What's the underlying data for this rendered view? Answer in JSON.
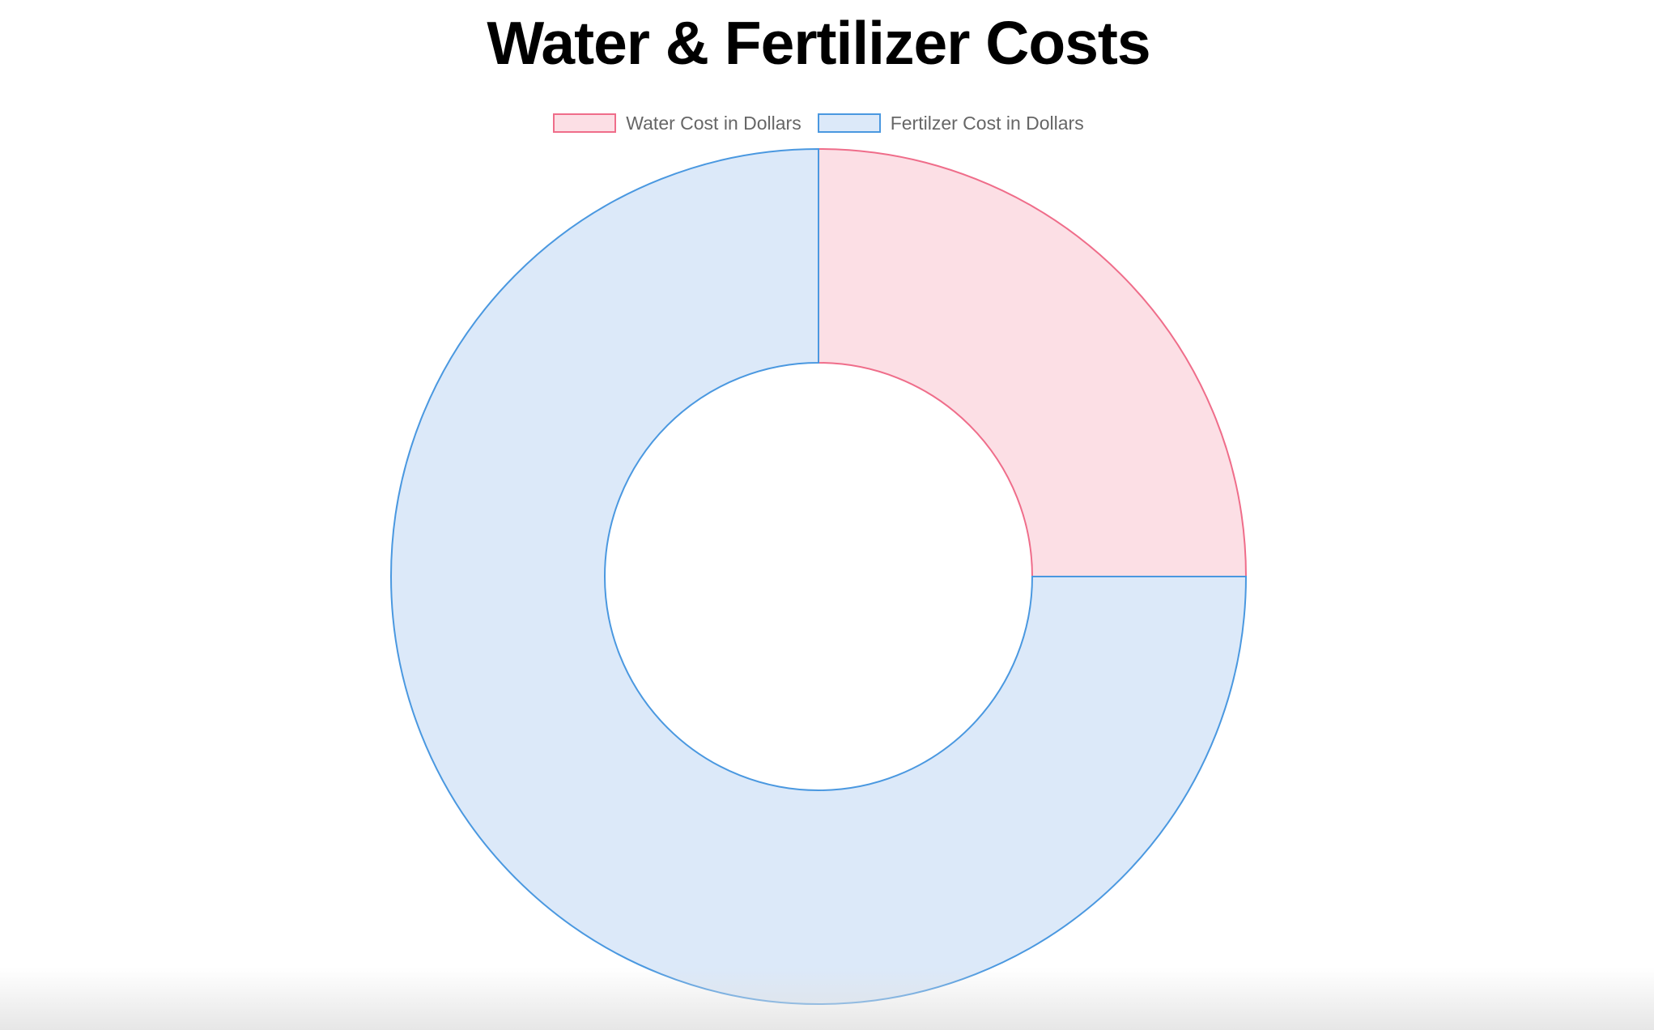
{
  "chart_data": {
    "type": "doughnut",
    "title": "Water & Fertilizer Costs",
    "categories": [
      "Water Cost in Dollars",
      "Fertilzer Cost in Dollars"
    ],
    "values": [
      25,
      75
    ],
    "colors": {
      "fill": [
        "#fcdfe5",
        "#dce9f9"
      ],
      "border": [
        "#ef6d8a",
        "#4a98e0"
      ]
    },
    "legend": "top"
  }
}
